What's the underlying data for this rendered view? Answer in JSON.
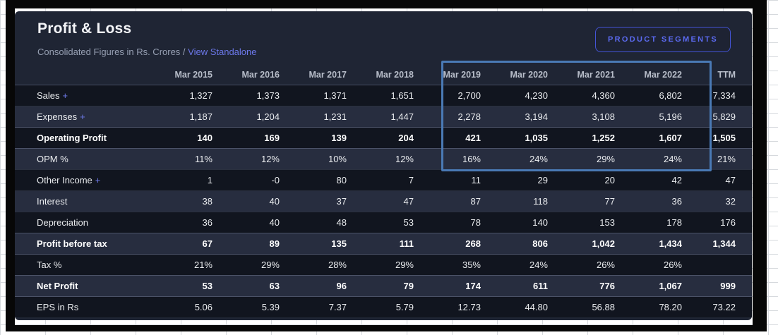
{
  "panel": {
    "title": "Profit & Loss",
    "subtitle_prefix": "Consolidated Figures in Rs. Crores /",
    "subtitle_link": "View Standalone",
    "segments_button_label": "PRODUCT SEGMENTS"
  },
  "colors": {
    "card_background": "#1f2534",
    "row_dark": "#11151f",
    "row_light": "#272d3f",
    "accent_link": "#6b77e8",
    "button_accent": "#5b6af0",
    "highlight_border": "#4a7ab5"
  },
  "table": {
    "columns": [
      "Mar 2015",
      "Mar 2016",
      "Mar 2017",
      "Mar 2018",
      "Mar 2019",
      "Mar 2020",
      "Mar 2021",
      "Mar 2022",
      "TTM"
    ],
    "rows": [
      {
        "label": "Sales",
        "expandable": true,
        "strong": false,
        "values": [
          "1,327",
          "1,373",
          "1,371",
          "1,651",
          "2,700",
          "4,230",
          "4,360",
          "6,802",
          "7,334"
        ]
      },
      {
        "label": "Expenses",
        "expandable": true,
        "strong": false,
        "values": [
          "1,187",
          "1,204",
          "1,231",
          "1,447",
          "2,278",
          "3,194",
          "3,108",
          "5,196",
          "5,829"
        ]
      },
      {
        "label": "Operating Profit",
        "expandable": false,
        "strong": true,
        "values": [
          "140",
          "169",
          "139",
          "204",
          "421",
          "1,035",
          "1,252",
          "1,607",
          "1,505"
        ]
      },
      {
        "label": "OPM %",
        "expandable": false,
        "strong": false,
        "values": [
          "11%",
          "12%",
          "10%",
          "12%",
          "16%",
          "24%",
          "29%",
          "24%",
          "21%"
        ]
      },
      {
        "label": "Other Income",
        "expandable": true,
        "strong": false,
        "values": [
          "1",
          "-0",
          "80",
          "7",
          "11",
          "29",
          "20",
          "42",
          "47"
        ]
      },
      {
        "label": "Interest",
        "expandable": false,
        "strong": false,
        "values": [
          "38",
          "40",
          "37",
          "47",
          "87",
          "118",
          "77",
          "36",
          "32"
        ]
      },
      {
        "label": "Depreciation",
        "expandable": false,
        "strong": false,
        "values": [
          "36",
          "40",
          "48",
          "53",
          "78",
          "140",
          "153",
          "178",
          "176"
        ]
      },
      {
        "label": "Profit before tax",
        "expandable": false,
        "strong": true,
        "values": [
          "67",
          "89",
          "135",
          "111",
          "268",
          "806",
          "1,042",
          "1,434",
          "1,344"
        ]
      },
      {
        "label": "Tax %",
        "expandable": false,
        "strong": false,
        "values": [
          "21%",
          "29%",
          "28%",
          "29%",
          "35%",
          "24%",
          "26%",
          "26%",
          ""
        ]
      },
      {
        "label": "Net Profit",
        "expandable": false,
        "strong": true,
        "values": [
          "53",
          "63",
          "96",
          "79",
          "174",
          "611",
          "776",
          "1,067",
          "999"
        ]
      },
      {
        "label": "EPS in Rs",
        "expandable": false,
        "strong": false,
        "values": [
          "5.06",
          "5.39",
          "7.37",
          "5.79",
          "12.73",
          "44.80",
          "56.88",
          "78.20",
          "73.22"
        ]
      }
    ]
  },
  "highlight": {
    "columns_covered": "Mar 2019 - Mar 2022",
    "rows_covered": "Sales - OPM %"
  }
}
